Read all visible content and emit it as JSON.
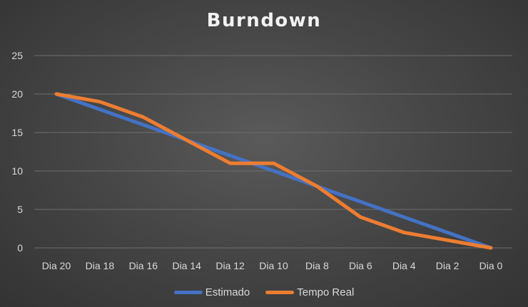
{
  "chart_data": {
    "type": "line",
    "title": "Burndown",
    "xlabel": "",
    "ylabel": "",
    "categories": [
      "Dia 20",
      "Dia 18",
      "Dia 16",
      "Dia 14",
      "Dia 12",
      "Dia 10",
      "Dia 8",
      "Dia 6",
      "Dia 4",
      "Dia 2",
      "Dia 0"
    ],
    "ylim": [
      0,
      25
    ],
    "yticks": [
      0,
      5,
      10,
      15,
      20,
      25
    ],
    "grid": true,
    "legend_position": "bottom",
    "series": [
      {
        "name": "Estimado",
        "color": "#4472c4",
        "values": [
          20,
          18,
          16,
          14,
          12,
          10,
          8,
          6,
          4,
          2,
          0
        ]
      },
      {
        "name": "Tempo Real",
        "color": "#ed7d31",
        "values": [
          20,
          19,
          17,
          14,
          11,
          11,
          8,
          4,
          2,
          1,
          0
        ]
      }
    ]
  }
}
